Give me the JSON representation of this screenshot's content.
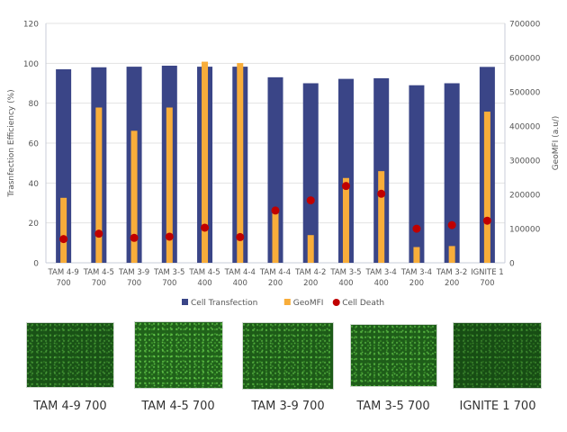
{
  "chart_data": {
    "type": "bar",
    "categories": [
      "TAM 4-9|700",
      "TAM 4-5|700",
      "TAM 3-9|700",
      "TAM 3-5|700",
      "TAM 4-5|400",
      "TAM 4-4|400",
      "TAM 4-4|200",
      "TAM 4-2|200",
      "TAM 3-5|400",
      "TAM 3-4|400",
      "TAM 3-4|200",
      "TAM 3-2|200",
      "IGNITE 1|700"
    ],
    "ylabel": "Trasnfection Efficiency (%)",
    "y2label": "GeoMFI (a.u/)",
    "ylim": [
      0,
      120
    ],
    "y2lim": [
      0,
      700000
    ],
    "yticks": [
      0,
      20,
      40,
      60,
      80,
      100,
      120
    ],
    "y2ticks": [
      0,
      100000,
      200000,
      300000,
      400000,
      500000,
      600000,
      700000
    ],
    "grid": true,
    "legend_placement": "bottom",
    "series": [
      {
        "name": "Cell Transfection",
        "type": "bar",
        "axis": "left",
        "color": "#3a4587",
        "values": [
          97,
          98,
          98.3,
          98.8,
          98.3,
          98.3,
          93,
          90,
          92.2,
          92.5,
          89,
          90,
          98.2
        ]
      },
      {
        "name": "GeoMFI",
        "type": "bar",
        "axis": "right",
        "color": "#f8ad3a",
        "values": [
          190000,
          454000,
          386000,
          454000,
          588000,
          584000,
          152000,
          81000,
          248000,
          268000,
          46000,
          49000,
          442000
        ]
      },
      {
        "name": "Cell Death",
        "type": "scatter",
        "axis": "left",
        "color": "#c00000",
        "values": [
          11.9,
          14.6,
          12.5,
          13.1,
          17.6,
          12.9,
          26.2,
          31.3,
          38.5,
          34.6,
          17.1,
          18.9,
          21.1
        ]
      }
    ]
  },
  "images": [
    {
      "label": "TAM 4-9 700",
      "brightness": 0.35
    },
    {
      "label": "TAM 4-5 700",
      "brightness": 0.8
    },
    {
      "label": "TAM 3-9 700",
      "brightness": 0.6
    },
    {
      "label": "TAM 3-5 700",
      "brightness": 0.65
    },
    {
      "label": "IGNITE 1 700",
      "brightness": 0.2
    }
  ]
}
